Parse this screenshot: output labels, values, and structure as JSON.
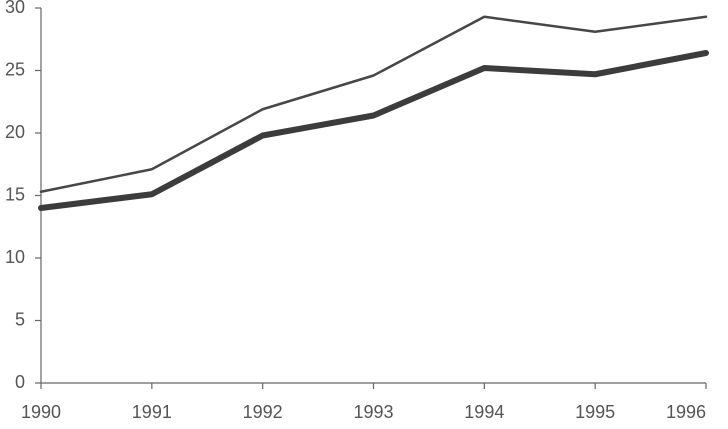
{
  "chart_data": {
    "type": "line",
    "x": [
      1990,
      1991,
      1992,
      1993,
      1994,
      1995,
      1996
    ],
    "series": [
      {
        "color": "#474747",
        "width": 2.5,
        "values": [
          15.3,
          17.1,
          21.9,
          24.6,
          29.3,
          28.1,
          29.3
        ]
      },
      {
        "color": "#3c3c3c",
        "width": 6,
        "values": [
          14.0,
          15.1,
          19.8,
          21.4,
          25.2,
          24.7,
          26.4
        ]
      }
    ],
    "xlim": [
      1990,
      1996
    ],
    "xticks": [
      1990,
      1991,
      1992,
      1993,
      1994,
      1995,
      1996
    ],
    "ylim": [
      0,
      30
    ],
    "yticks": [
      0,
      5,
      10,
      15,
      20,
      25,
      30
    ],
    "grid": false
  }
}
